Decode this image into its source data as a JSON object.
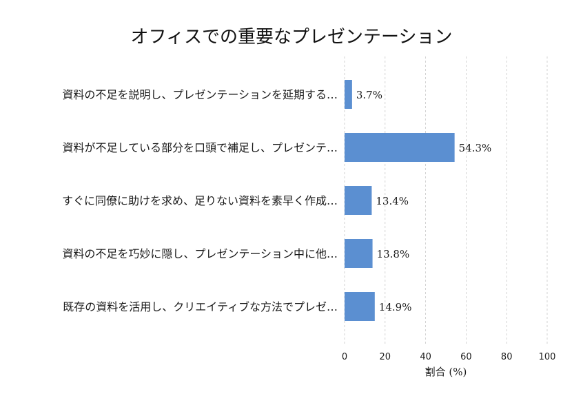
{
  "chart_data": {
    "type": "bar",
    "orientation": "horizontal",
    "title": "オフィスでの重要なプレゼンテーション",
    "xlabel": "割合 (%)",
    "ylabel": "",
    "xlim": [
      0,
      100
    ],
    "xticks": [
      0,
      20,
      40,
      60,
      80,
      100
    ],
    "grid": "vertical-dashed",
    "bar_color": "#5b8fd1",
    "categories": [
      "資料の不足を説明し、プレゼンテーションを延期する…",
      "資料が不足している部分を口頭で補足し、プレゼンテ…",
      "すぐに同僚に助けを求め、足りない資料を素早く作成…",
      "資料の不足を巧妙に隠し、プレゼンテーション中に他…",
      "既存の資料を活用し、クリエイティブな方法でプレゼ…"
    ],
    "values": [
      3.7,
      54.3,
      13.4,
      13.8,
      14.9
    ],
    "value_labels": [
      "3.7%",
      "54.3%",
      "13.4%",
      "13.8%",
      "14.9%"
    ]
  }
}
